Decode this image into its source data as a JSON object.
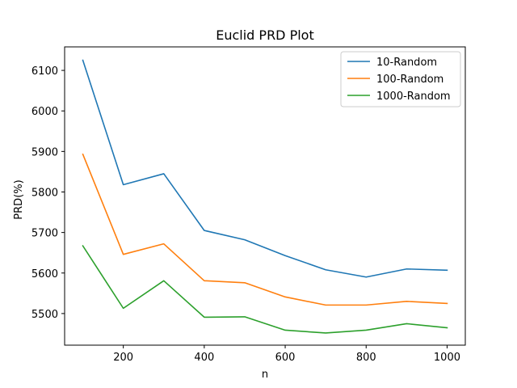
{
  "chart_data": {
    "type": "line",
    "title": "Euclid PRD Plot",
    "xlabel": "n",
    "ylabel": "PRD(%)",
    "x": [
      100,
      200,
      300,
      400,
      500,
      600,
      700,
      800,
      900,
      1000
    ],
    "xlim": [
      55,
      1045
    ],
    "ylim": [
      5422,
      6158
    ],
    "xticks": [
      200,
      400,
      600,
      800,
      1000
    ],
    "yticks": [
      5500,
      5600,
      5700,
      5800,
      5900,
      6000,
      6100
    ],
    "grid": false,
    "legend_position": "top-right",
    "series": [
      {
        "name": "10-Random",
        "color": "#1f77b4",
        "values": [
          6125,
          5818,
          5845,
          5705,
          5682,
          5643,
          5608,
          5590,
          5610,
          5607
        ]
      },
      {
        "name": "100-Random",
        "color": "#ff7f0e",
        "values": [
          5893,
          5646,
          5672,
          5581,
          5576,
          5541,
          5521,
          5521,
          5530,
          5525
        ]
      },
      {
        "name": "1000-Random",
        "color": "#2ca02c",
        "values": [
          5667,
          5513,
          5581,
          5491,
          5492,
          5459,
          5452,
          5459,
          5475,
          5465
        ]
      }
    ]
  }
}
